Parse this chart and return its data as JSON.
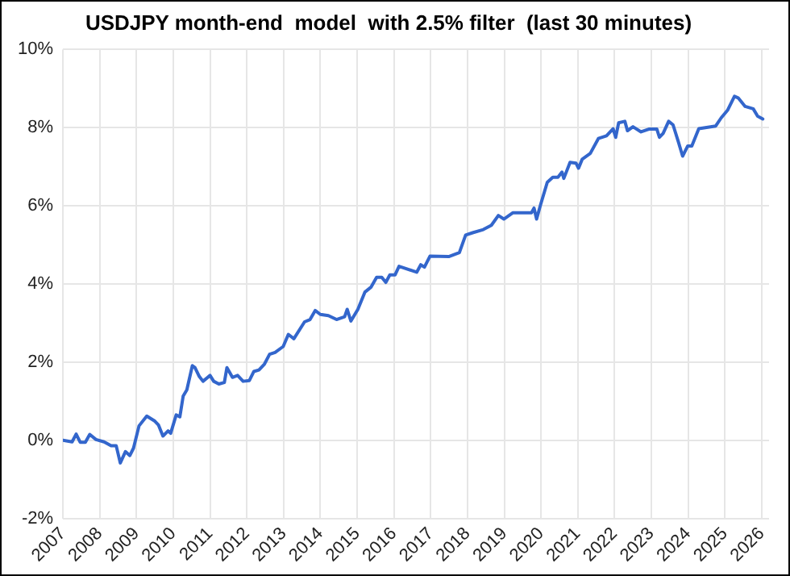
{
  "chart_data": {
    "type": "line",
    "title": "USDJPY month-end  model  with 2.5% filter  (last 30 minutes)",
    "xlim": [
      2007,
      2026.2
    ],
    "xticks": [
      2007,
      2008,
      2009,
      2010,
      2011,
      2012,
      2013,
      2014,
      2015,
      2016,
      2017,
      2018,
      2019,
      2020,
      2021,
      2022,
      2023,
      2024,
      2025,
      2026
    ],
    "ylim": [
      -2,
      10
    ],
    "yticks": [
      {
        "value": -2,
        "label": "-2%"
      },
      {
        "value": 0,
        "label": "0%"
      },
      {
        "value": 2,
        "label": "2%"
      },
      {
        "value": 4,
        "label": "4%"
      },
      {
        "value": 6,
        "label": "6%"
      },
      {
        "value": 8,
        "label": "8%"
      },
      {
        "value": 10,
        "label": "10%"
      }
    ],
    "grid": true,
    "marker": "none",
    "line_style": "solid",
    "series": [
      {
        "color": "#3366cc",
        "x": [
          2007.0,
          2007.25,
          2007.36,
          2007.47,
          2007.61,
          2007.73,
          2007.9,
          2008.12,
          2008.31,
          2008.45,
          2008.56,
          2008.7,
          2008.82,
          2008.92,
          2009.07,
          2009.28,
          2009.5,
          2009.6,
          2009.72,
          2009.86,
          2009.93,
          2010.08,
          2010.18,
          2010.27,
          2010.37,
          2010.52,
          2010.59,
          2010.71,
          2010.81,
          2011.0,
          2011.1,
          2011.24,
          2011.39,
          2011.46,
          2011.61,
          2011.75,
          2011.9,
          2012.07,
          2012.19,
          2012.33,
          2012.48,
          2012.62,
          2012.77,
          2012.99,
          2013.13,
          2013.28,
          2013.57,
          2013.72,
          2013.86,
          2014.0,
          2014.22,
          2014.44,
          2014.66,
          2014.73,
          2014.83,
          2015.02,
          2015.21,
          2015.38,
          2015.53,
          2015.67,
          2015.78,
          2015.89,
          2016.03,
          2016.14,
          2016.62,
          2016.73,
          2016.83,
          2016.98,
          2017.49,
          2017.78,
          2017.95,
          2018.14,
          2018.43,
          2018.65,
          2018.84,
          2018.99,
          2019.23,
          2019.74,
          2019.81,
          2019.88,
          2019.98,
          2020.17,
          2020.32,
          2020.46,
          2020.57,
          2020.62,
          2020.79,
          2020.95,
          2021.02,
          2021.12,
          2021.34,
          2021.56,
          2021.78,
          2021.96,
          2022.03,
          2022.11,
          2022.28,
          2022.35,
          2022.5,
          2022.72,
          2022.93,
          2023.15,
          2023.22,
          2023.32,
          2023.47,
          2023.59,
          2023.73,
          2023.85,
          2023.99,
          2024.1,
          2024.29,
          2024.75,
          2024.9,
          2025.07,
          2025.26,
          2025.36,
          2025.55,
          2025.77,
          2025.89,
          2026.03
        ],
        "values": [
          0.0,
          -0.04,
          0.16,
          -0.05,
          -0.05,
          0.15,
          0.02,
          -0.04,
          -0.14,
          -0.14,
          -0.58,
          -0.29,
          -0.39,
          -0.2,
          0.37,
          0.62,
          0.49,
          0.39,
          0.11,
          0.24,
          0.18,
          0.65,
          0.6,
          1.13,
          1.29,
          1.91,
          1.86,
          1.63,
          1.51,
          1.66,
          1.51,
          1.44,
          1.48,
          1.86,
          1.61,
          1.66,
          1.51,
          1.53,
          1.76,
          1.8,
          1.95,
          2.2,
          2.25,
          2.4,
          2.71,
          2.6,
          3.03,
          3.09,
          3.32,
          3.22,
          3.19,
          3.09,
          3.16,
          3.35,
          3.05,
          3.35,
          3.79,
          3.92,
          4.17,
          4.17,
          4.04,
          4.23,
          4.23,
          4.45,
          4.3,
          4.49,
          4.43,
          4.71,
          4.7,
          4.8,
          5.25,
          5.31,
          5.39,
          5.5,
          5.75,
          5.66,
          5.82,
          5.82,
          5.94,
          5.66,
          6.0,
          6.6,
          6.73,
          6.73,
          6.86,
          6.7,
          7.11,
          7.09,
          6.96,
          7.19,
          7.34,
          7.72,
          7.79,
          7.97,
          7.75,
          8.12,
          8.16,
          7.92,
          8.02,
          7.89,
          7.96,
          7.96,
          7.75,
          7.85,
          8.16,
          8.07,
          7.65,
          7.27,
          7.53,
          7.53,
          7.97,
          8.04,
          8.25,
          8.44,
          8.8,
          8.76,
          8.54,
          8.48,
          8.29,
          8.22
        ]
      }
    ]
  }
}
